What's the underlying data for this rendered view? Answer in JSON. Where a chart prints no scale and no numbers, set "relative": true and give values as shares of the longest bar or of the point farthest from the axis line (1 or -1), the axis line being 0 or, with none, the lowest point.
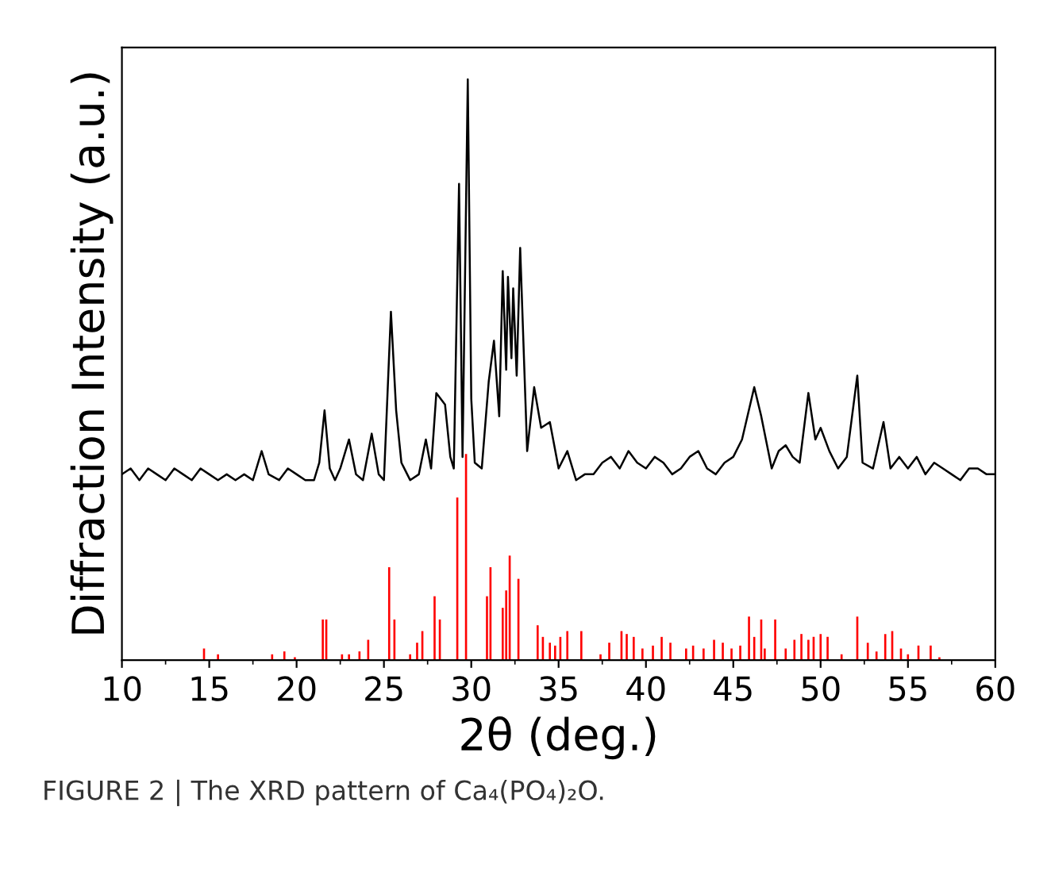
{
  "chart_data": {
    "type": "line",
    "relative": true,
    "xlabel": "2θ (deg.)",
    "ylabel": "Diffraction Intensity (a.u.)",
    "annotations": [
      "FIGURE 2 | The XRD pattern of Ca₄(PO₄)₂O."
    ],
    "xlim": [
      10,
      60
    ],
    "xticks": [
      10,
      15,
      20,
      25,
      30,
      35,
      40,
      45,
      50,
      55,
      60
    ],
    "grid": false,
    "series": [
      {
        "color": "#000000",
        "x": [
          10,
          10.5,
          11,
          11.5,
          12,
          12.5,
          13,
          13.5,
          14,
          14.5,
          15,
          15.5,
          16,
          16.5,
          17,
          17.5,
          18,
          18.4,
          19,
          19.5,
          20,
          20.5,
          21,
          21.3,
          21.6,
          21.9,
          22.2,
          22.5,
          23,
          23.4,
          23.8,
          24.3,
          24.7,
          25,
          25.4,
          25.7,
          26,
          26.5,
          27,
          27.4,
          27.7,
          28,
          28.5,
          28.8,
          29.0,
          29.3,
          29.5,
          29.8,
          30.0,
          30.2,
          30.6,
          31.0,
          31.3,
          31.6,
          31.8,
          32.0,
          32.1,
          32.3,
          32.4,
          32.6,
          32.8,
          33.2,
          33.6,
          34.0,
          34.5,
          35.0,
          35.5,
          36.0,
          36.5,
          37,
          37.5,
          38,
          38.5,
          39,
          39.5,
          40,
          40.5,
          41,
          41.5,
          42,
          42.5,
          43,
          43.5,
          44,
          44.5,
          45,
          45.5,
          46.2,
          46.6,
          47.2,
          47.6,
          48,
          48.4,
          48.8,
          49.3,
          49.7,
          50,
          50.5,
          51,
          51.5,
          52.1,
          52.4,
          53,
          53.6,
          54,
          54.5,
          55,
          55.5,
          56,
          56.5,
          57,
          57.5,
          58,
          58.5,
          59,
          59.5,
          60
        ],
        "values": [
          0.32,
          0.33,
          0.31,
          0.33,
          0.32,
          0.31,
          0.33,
          0.32,
          0.31,
          0.33,
          0.32,
          0.31,
          0.32,
          0.31,
          0.32,
          0.31,
          0.36,
          0.32,
          0.31,
          0.33,
          0.32,
          0.31,
          0.31,
          0.34,
          0.43,
          0.33,
          0.31,
          0.33,
          0.38,
          0.32,
          0.31,
          0.39,
          0.32,
          0.31,
          0.6,
          0.43,
          0.34,
          0.31,
          0.32,
          0.38,
          0.33,
          0.46,
          0.44,
          0.35,
          0.33,
          0.82,
          0.35,
          1.0,
          0.45,
          0.34,
          0.33,
          0.48,
          0.55,
          0.42,
          0.67,
          0.5,
          0.66,
          0.52,
          0.64,
          0.49,
          0.71,
          0.36,
          0.47,
          0.4,
          0.41,
          0.33,
          0.36,
          0.31,
          0.32,
          0.32,
          0.34,
          0.35,
          0.33,
          0.36,
          0.34,
          0.33,
          0.35,
          0.34,
          0.32,
          0.33,
          0.35,
          0.36,
          0.33,
          0.32,
          0.34,
          0.35,
          0.38,
          0.47,
          0.42,
          0.33,
          0.36,
          0.37,
          0.35,
          0.34,
          0.46,
          0.38,
          0.4,
          0.36,
          0.33,
          0.35,
          0.49,
          0.34,
          0.33,
          0.41,
          0.33,
          0.35,
          0.33,
          0.35,
          0.32,
          0.34,
          0.33,
          0.32,
          0.31,
          0.33,
          0.33,
          0.32,
          0.32
        ]
      },
      {
        "type": "bar",
        "color": "#ff0000",
        "x": [
          14.7,
          15.5,
          18.6,
          19.3,
          19.9,
          21.5,
          21.7,
          22.6,
          23.0,
          23.6,
          24.1,
          25.3,
          25.6,
          26.5,
          26.9,
          27.2,
          27.9,
          28.2,
          29.2,
          29.7,
          30.9,
          31.1,
          31.8,
          32.0,
          32.2,
          32.7,
          33.8,
          34.1,
          34.5,
          34.8,
          35.1,
          35.5,
          36.3,
          37.4,
          37.9,
          38.6,
          38.9,
          39.3,
          39.8,
          40.4,
          40.9,
          41.4,
          42.3,
          42.7,
          43.3,
          43.9,
          44.4,
          44.9,
          45.4,
          45.9,
          46.2,
          46.6,
          46.8,
          47.4,
          48.0,
          48.5,
          48.9,
          49.3,
          49.6,
          50.0,
          50.4,
          51.2,
          52.1,
          52.7,
          53.2,
          53.7,
          54.1,
          54.6,
          55.0,
          55.6,
          56.3,
          56.8
        ],
        "values": [
          0.02,
          0.01,
          0.01,
          0.015,
          0.005,
          0.07,
          0.07,
          0.01,
          0.01,
          0.015,
          0.035,
          0.16,
          0.07,
          0.01,
          0.03,
          0.05,
          0.11,
          0.07,
          0.28,
          0.355,
          0.11,
          0.16,
          0.09,
          0.12,
          0.18,
          0.14,
          0.06,
          0.04,
          0.03,
          0.025,
          0.04,
          0.05,
          0.05,
          0.01,
          0.03,
          0.05,
          0.045,
          0.04,
          0.02,
          0.025,
          0.04,
          0.03,
          0.02,
          0.025,
          0.02,
          0.035,
          0.03,
          0.02,
          0.025,
          0.075,
          0.04,
          0.07,
          0.02,
          0.07,
          0.02,
          0.035,
          0.045,
          0.035,
          0.04,
          0.045,
          0.04,
          0.01,
          0.075,
          0.03,
          0.015,
          0.045,
          0.05,
          0.02,
          0.01,
          0.025,
          0.025,
          0.005
        ]
      }
    ]
  }
}
